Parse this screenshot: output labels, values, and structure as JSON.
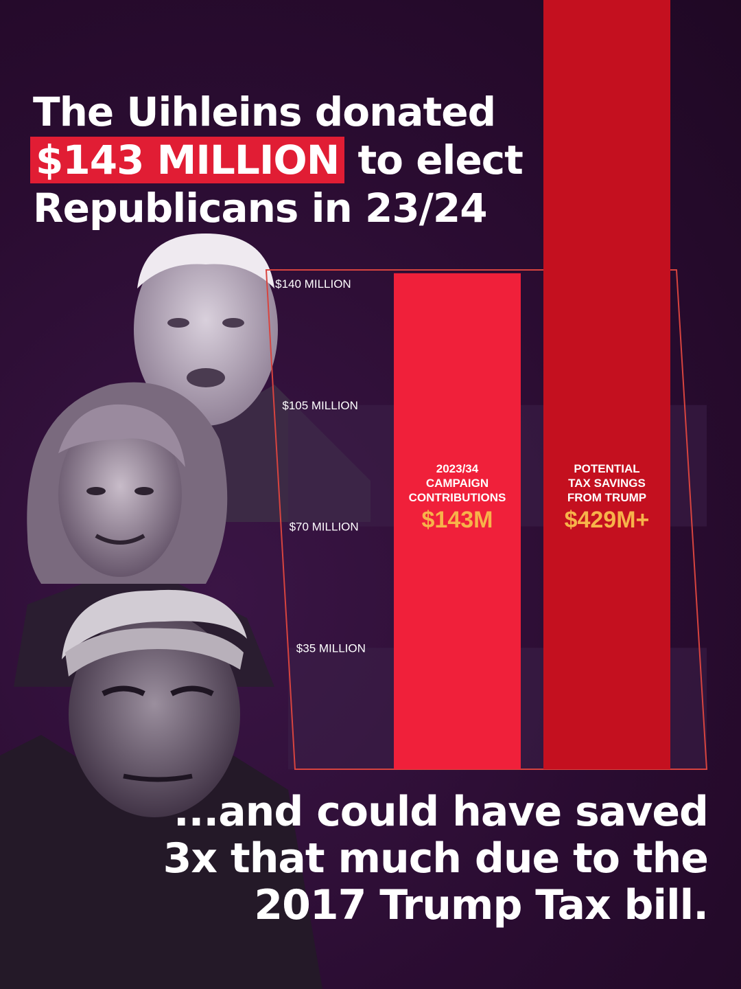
{
  "headline": {
    "line1": "The Uihleins donated",
    "highlight": "$143 MILLION",
    "line2_rest": " to elect",
    "line3": "Republicans in 23/24"
  },
  "footer": {
    "line1": "...and could have saved",
    "line2": "3x that much due to the",
    "line3": "2017 Trump Tax bill."
  },
  "chart_data": {
    "type": "bar",
    "categories": [
      "2023/34 CAMPAIGN CONTRIBUTIONS",
      "POTENTIAL TAX SAVINGS FROM TRUMP"
    ],
    "category_lines": [
      [
        "2023/34",
        "CAMPAIGN",
        "CONTRIBUTIONS"
      ],
      [
        "POTENTIAL",
        "TAX SAVINGS",
        "FROM TRUMP"
      ]
    ],
    "values": [
      143,
      429
    ],
    "value_labels": [
      "$143M",
      "$429M+"
    ],
    "y_ticks": [
      35,
      70,
      105,
      140
    ],
    "y_tick_labels": [
      "$35 MILLION",
      "$70 MILLION",
      "$105 MILLION",
      "$140 MILLION"
    ],
    "ylim": [
      0,
      140
    ],
    "grid": false,
    "colors": {
      "bar1": "#f0203a",
      "bar2": "#c4101f",
      "value_label": "#f7b34a",
      "frame": "#d8443f",
      "band": "#3d2048"
    }
  },
  "photos": [
    "older-man-photo",
    "woman-photo",
    "trump-photo"
  ]
}
